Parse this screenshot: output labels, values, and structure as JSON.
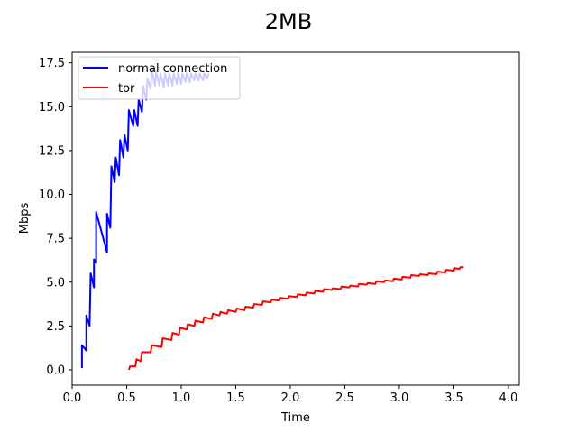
{
  "chart_data": {
    "type": "line",
    "title": "2MB",
    "xlabel": "Time",
    "ylabel": "Mbps",
    "xlim": [
      0.0,
      4.1
    ],
    "ylim": [
      -0.875,
      18.1
    ],
    "x_ticks": [
      0.0,
      0.5,
      1.0,
      1.5,
      2.0,
      2.5,
      3.0,
      3.5,
      4.0
    ],
    "x_tick_labels": [
      "0.0",
      "0.5",
      "1.0",
      "1.5",
      "2.0",
      "2.5",
      "3.0",
      "3.5",
      "4.0"
    ],
    "y_ticks": [
      0.0,
      2.5,
      5.0,
      7.5,
      10.0,
      12.5,
      15.0,
      17.5
    ],
    "y_tick_labels": [
      "0.0",
      "2.5",
      "5.0",
      "7.5",
      "10.0",
      "12.5",
      "15.0",
      "17.5"
    ],
    "grid": false,
    "legend": {
      "placement": "upper-left"
    },
    "series": [
      {
        "name": "normal connection",
        "color": "#0000ff",
        "points": [
          [
            0.09,
            0.1
          ],
          [
            0.09,
            1.4
          ],
          [
            0.13,
            1.1
          ],
          [
            0.13,
            3.1
          ],
          [
            0.16,
            2.5
          ],
          [
            0.17,
            5.5
          ],
          [
            0.2,
            4.7
          ],
          [
            0.2,
            6.3
          ],
          [
            0.22,
            6.1
          ],
          [
            0.22,
            9.0
          ],
          [
            0.32,
            6.7
          ],
          [
            0.32,
            8.9
          ],
          [
            0.35,
            8.1
          ],
          [
            0.36,
            11.6
          ],
          [
            0.39,
            10.7
          ],
          [
            0.4,
            12.1
          ],
          [
            0.43,
            11.1
          ],
          [
            0.44,
            13.1
          ],
          [
            0.47,
            12.1
          ],
          [
            0.48,
            13.4
          ],
          [
            0.51,
            12.5
          ],
          [
            0.52,
            14.8
          ],
          [
            0.56,
            13.9
          ],
          [
            0.57,
            14.8
          ],
          [
            0.6,
            13.9
          ],
          [
            0.61,
            15.4
          ],
          [
            0.64,
            14.7
          ],
          [
            0.65,
            16.2
          ],
          [
            0.68,
            15.4
          ],
          [
            0.69,
            16.6
          ],
          [
            0.72,
            16.0
          ],
          [
            0.73,
            17.1
          ],
          [
            0.76,
            16.2
          ],
          [
            0.77,
            17.0
          ],
          [
            0.8,
            16.2
          ],
          [
            0.81,
            16.9
          ],
          [
            0.84,
            16.1
          ],
          [
            0.85,
            16.9
          ],
          [
            0.88,
            16.2
          ],
          [
            0.89,
            16.9
          ],
          [
            0.92,
            16.2
          ],
          [
            0.93,
            16.9
          ],
          [
            0.96,
            16.3
          ],
          [
            0.97,
            16.9
          ],
          [
            1.0,
            16.3
          ],
          [
            1.01,
            16.9
          ],
          [
            1.04,
            16.4
          ],
          [
            1.05,
            16.9
          ],
          [
            1.08,
            16.4
          ],
          [
            1.09,
            16.9
          ],
          [
            1.12,
            16.5
          ],
          [
            1.13,
            16.9
          ],
          [
            1.16,
            16.5
          ],
          [
            1.17,
            16.9
          ],
          [
            1.2,
            16.5
          ],
          [
            1.21,
            16.9
          ],
          [
            1.24,
            16.6
          ],
          [
            1.25,
            16.9
          ]
        ]
      },
      {
        "name": "tor",
        "color": "#ff0000",
        "points": [
          [
            0.52,
            0.0
          ],
          [
            0.53,
            0.2
          ],
          [
            0.58,
            0.2
          ],
          [
            0.59,
            0.6
          ],
          [
            0.63,
            0.5
          ],
          [
            0.64,
            1.0
          ],
          [
            0.72,
            1.0
          ],
          [
            0.73,
            1.4
          ],
          [
            0.82,
            1.3
          ],
          [
            0.83,
            1.8
          ],
          [
            0.91,
            1.7
          ],
          [
            0.92,
            2.1
          ],
          [
            0.98,
            2.0
          ],
          [
            0.99,
            2.4
          ],
          [
            1.05,
            2.3
          ],
          [
            1.06,
            2.6
          ],
          [
            1.12,
            2.5
          ],
          [
            1.13,
            2.8
          ],
          [
            1.2,
            2.7
          ],
          [
            1.21,
            3.0
          ],
          [
            1.28,
            2.9
          ],
          [
            1.29,
            3.2
          ],
          [
            1.35,
            3.1
          ],
          [
            1.36,
            3.3
          ],
          [
            1.42,
            3.2
          ],
          [
            1.43,
            3.4
          ],
          [
            1.5,
            3.3
          ],
          [
            1.51,
            3.5
          ],
          [
            1.58,
            3.4
          ],
          [
            1.59,
            3.6
          ],
          [
            1.66,
            3.55
          ],
          [
            1.67,
            3.75
          ],
          [
            1.74,
            3.7
          ],
          [
            1.75,
            3.9
          ],
          [
            1.82,
            3.85
          ],
          [
            1.83,
            4.0
          ],
          [
            1.9,
            3.95
          ],
          [
            1.91,
            4.1
          ],
          [
            1.98,
            4.05
          ],
          [
            1.99,
            4.2
          ],
          [
            2.06,
            4.15
          ],
          [
            2.07,
            4.3
          ],
          [
            2.14,
            4.25
          ],
          [
            2.15,
            4.4
          ],
          [
            2.22,
            4.35
          ],
          [
            2.23,
            4.5
          ],
          [
            2.3,
            4.45
          ],
          [
            2.31,
            4.6
          ],
          [
            2.38,
            4.55
          ],
          [
            2.39,
            4.65
          ],
          [
            2.46,
            4.6
          ],
          [
            2.47,
            4.75
          ],
          [
            2.54,
            4.7
          ],
          [
            2.55,
            4.8
          ],
          [
            2.62,
            4.75
          ],
          [
            2.63,
            4.9
          ],
          [
            2.7,
            4.85
          ],
          [
            2.71,
            4.95
          ],
          [
            2.78,
            4.9
          ],
          [
            2.79,
            5.05
          ],
          [
            2.86,
            5.0
          ],
          [
            2.87,
            5.1
          ],
          [
            2.94,
            5.05
          ],
          [
            2.95,
            5.2
          ],
          [
            3.02,
            5.15
          ],
          [
            3.03,
            5.3
          ],
          [
            3.1,
            5.25
          ],
          [
            3.11,
            5.4
          ],
          [
            3.18,
            5.35
          ],
          [
            3.19,
            5.45
          ],
          [
            3.26,
            5.4
          ],
          [
            3.27,
            5.5
          ],
          [
            3.34,
            5.45
          ],
          [
            3.35,
            5.6
          ],
          [
            3.42,
            5.55
          ],
          [
            3.43,
            5.7
          ],
          [
            3.5,
            5.65
          ],
          [
            3.51,
            5.8
          ],
          [
            3.55,
            5.75
          ],
          [
            3.56,
            5.85
          ],
          [
            3.59,
            5.85
          ]
        ]
      }
    ]
  }
}
